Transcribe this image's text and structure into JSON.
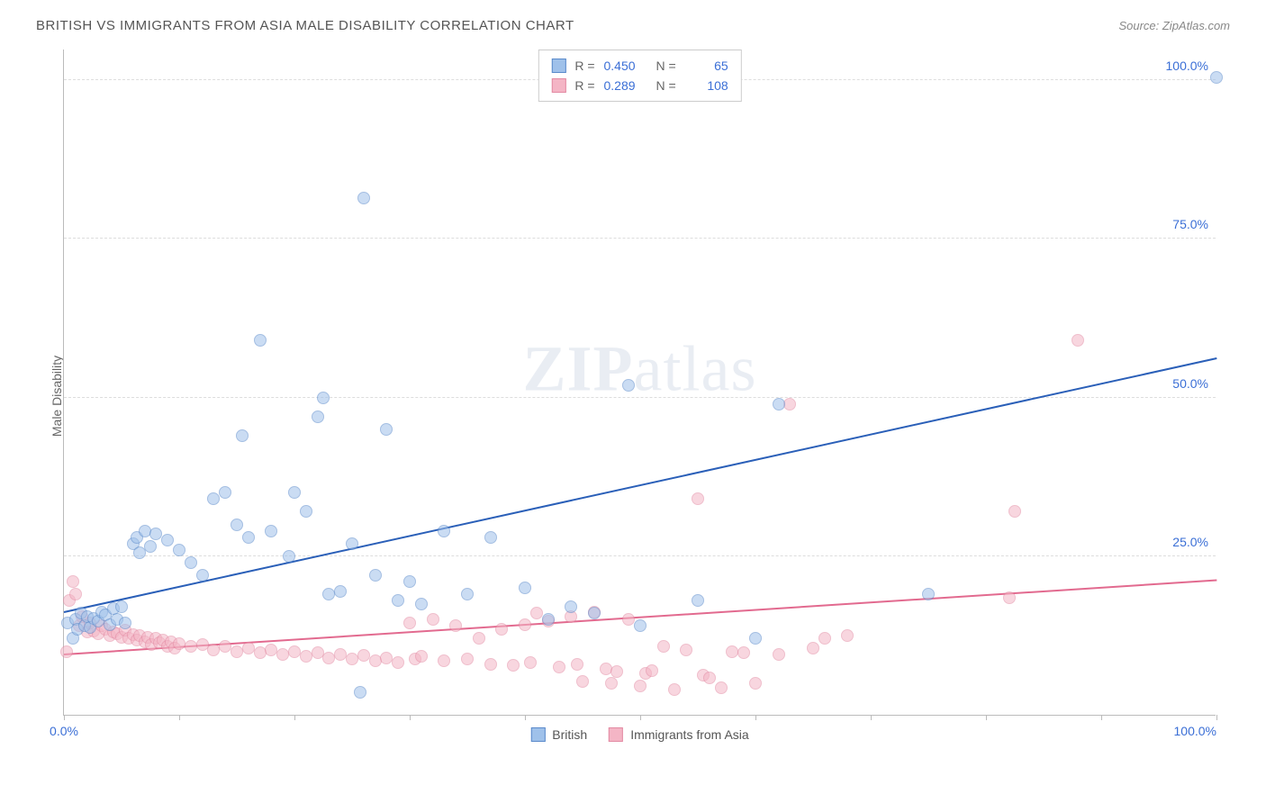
{
  "title": "BRITISH VS IMMIGRANTS FROM ASIA MALE DISABILITY CORRELATION CHART",
  "source_label": "Source: ZipAtlas.com",
  "ylabel": "Male Disability",
  "watermark": {
    "left": "ZIP",
    "right": "atlas"
  },
  "chart": {
    "type": "scatter",
    "xlim": [
      0,
      100
    ],
    "ylim": [
      0,
      105
    ],
    "x_ticks": [
      0,
      10,
      20,
      30,
      40,
      50,
      60,
      70,
      80,
      90,
      100
    ],
    "x_tick_labels": {
      "0": "0.0%",
      "100": "100.0%"
    },
    "y_gridlines": [
      25,
      50,
      75,
      100
    ],
    "y_tick_labels": {
      "25": "25.0%",
      "50": "50.0%",
      "75": "75.0%",
      "100": "100.0%"
    },
    "grid_color": "#dddddd",
    "axis_color": "#bbbbbb",
    "tick_label_color": "#3b6fd6",
    "background_color": "#ffffff",
    "point_radius": 7,
    "series": [
      {
        "name": "British",
        "fill": "#9fc1ea",
        "stroke": "#5a8acb",
        "fill_opacity": 0.55,
        "R": "0.450",
        "N": "65",
        "trend": {
          "x1": 0,
          "y1": 16.5,
          "x2": 100,
          "y2": 56.5,
          "color": "#2a5fb8",
          "width": 2
        },
        "points": [
          [
            0.3,
            14.5
          ],
          [
            0.8,
            12
          ],
          [
            1,
            15
          ],
          [
            1.2,
            13.5
          ],
          [
            1.5,
            16
          ],
          [
            1.8,
            14
          ],
          [
            2,
            15.5
          ],
          [
            2.3,
            13.8
          ],
          [
            2.6,
            15.2
          ],
          [
            3,
            14.8
          ],
          [
            3.3,
            16.2
          ],
          [
            3.6,
            15.8
          ],
          [
            4,
            14.2
          ],
          [
            4.3,
            16.8
          ],
          [
            4.6,
            15
          ],
          [
            5,
            17
          ],
          [
            5.3,
            14.5
          ],
          [
            6,
            27
          ],
          [
            6.3,
            28
          ],
          [
            6.6,
            25.5
          ],
          [
            7,
            29
          ],
          [
            7.5,
            26.5
          ],
          [
            8,
            28.5
          ],
          [
            9,
            27.5
          ],
          [
            10,
            26
          ],
          [
            11,
            24
          ],
          [
            12,
            22
          ],
          [
            13,
            34
          ],
          [
            14,
            35
          ],
          [
            15,
            30
          ],
          [
            15.5,
            44
          ],
          [
            16,
            28
          ],
          [
            17,
            59
          ],
          [
            18,
            29
          ],
          [
            19.5,
            25
          ],
          [
            20,
            35
          ],
          [
            21,
            32
          ],
          [
            22,
            47
          ],
          [
            22.5,
            50
          ],
          [
            23,
            19
          ],
          [
            24,
            19.5
          ],
          [
            25,
            27
          ],
          [
            25.7,
            3.5
          ],
          [
            26,
            81.5
          ],
          [
            27,
            22
          ],
          [
            28,
            45
          ],
          [
            29,
            18
          ],
          [
            30,
            21
          ],
          [
            31,
            17.5
          ],
          [
            33,
            29
          ],
          [
            35,
            19
          ],
          [
            37,
            28
          ],
          [
            40,
            20
          ],
          [
            42,
            15
          ],
          [
            44,
            17
          ],
          [
            46,
            16
          ],
          [
            49,
            52
          ],
          [
            50,
            14
          ],
          [
            55,
            18
          ],
          [
            60,
            12
          ],
          [
            62,
            49
          ],
          [
            75,
            19
          ],
          [
            100,
            100.5
          ]
        ]
      },
      {
        "name": "Immigrants from Asia",
        "fill": "#f4b5c5",
        "stroke": "#e38aa3",
        "fill_opacity": 0.55,
        "R": "0.289",
        "N": "108",
        "trend": {
          "x1": 0,
          "y1": 9.8,
          "x2": 100,
          "y2": 21.5,
          "color": "#e26a8f",
          "width": 2
        },
        "points": [
          [
            0.2,
            10
          ],
          [
            0.5,
            18
          ],
          [
            0.8,
            21
          ],
          [
            1,
            19
          ],
          [
            1.3,
            14
          ],
          [
            1.6,
            15.5
          ],
          [
            2,
            13
          ],
          [
            2.3,
            14.5
          ],
          [
            2.6,
            13.2
          ],
          [
            3,
            12.8
          ],
          [
            3.3,
            14
          ],
          [
            3.6,
            13.5
          ],
          [
            4,
            12.5
          ],
          [
            4.3,
            13
          ],
          [
            4.6,
            12.8
          ],
          [
            5,
            12.2
          ],
          [
            5.3,
            13.3
          ],
          [
            5.6,
            12
          ],
          [
            6,
            12.7
          ],
          [
            6.3,
            11.8
          ],
          [
            6.6,
            12.5
          ],
          [
            7,
            11.5
          ],
          [
            7.3,
            12.2
          ],
          [
            7.6,
            11
          ],
          [
            8,
            12
          ],
          [
            8.3,
            11.3
          ],
          [
            8.6,
            11.8
          ],
          [
            9,
            10.8
          ],
          [
            9.3,
            11.5
          ],
          [
            9.6,
            10.5
          ],
          [
            10,
            11.2
          ],
          [
            11,
            10.8
          ],
          [
            12,
            11
          ],
          [
            13,
            10.2
          ],
          [
            14,
            10.8
          ],
          [
            15,
            10
          ],
          [
            16,
            10.5
          ],
          [
            17,
            9.8
          ],
          [
            18,
            10.2
          ],
          [
            19,
            9.5
          ],
          [
            20,
            10
          ],
          [
            21,
            9.2
          ],
          [
            22,
            9.8
          ],
          [
            23,
            9
          ],
          [
            24,
            9.5
          ],
          [
            25,
            8.8
          ],
          [
            26,
            9.3
          ],
          [
            27,
            8.5
          ],
          [
            28,
            9
          ],
          [
            29,
            8.2
          ],
          [
            30,
            14.5
          ],
          [
            30.5,
            8.8
          ],
          [
            31,
            9.2
          ],
          [
            32,
            15
          ],
          [
            33,
            8.5
          ],
          [
            34,
            14
          ],
          [
            35,
            8.8
          ],
          [
            36,
            12
          ],
          [
            37,
            8
          ],
          [
            38,
            13.5
          ],
          [
            39,
            7.8
          ],
          [
            40,
            14.2
          ],
          [
            40.5,
            8.2
          ],
          [
            41,
            16
          ],
          [
            42,
            14.8
          ],
          [
            43,
            7.5
          ],
          [
            44,
            15.5
          ],
          [
            44.5,
            8
          ],
          [
            45,
            5.3
          ],
          [
            46,
            16.2
          ],
          [
            47,
            7.2
          ],
          [
            47.5,
            5
          ],
          [
            48,
            6.8
          ],
          [
            49,
            15
          ],
          [
            50,
            4.5
          ],
          [
            50.5,
            6.5
          ],
          [
            51,
            7
          ],
          [
            52,
            10.8
          ],
          [
            53,
            4
          ],
          [
            54,
            10.2
          ],
          [
            55,
            34
          ],
          [
            55.5,
            6.2
          ],
          [
            56,
            5.8
          ],
          [
            57,
            4.2
          ],
          [
            58,
            10
          ],
          [
            59,
            9.8
          ],
          [
            60,
            5
          ],
          [
            62,
            9.5
          ],
          [
            63,
            49
          ],
          [
            65,
            10.5
          ],
          [
            66,
            12
          ],
          [
            68,
            12.5
          ],
          [
            82,
            18.5
          ],
          [
            82.5,
            32
          ],
          [
            88,
            59
          ]
        ]
      }
    ]
  },
  "legend_top_labels": {
    "R": "R =",
    "N": "N ="
  },
  "legend_bottom": [
    {
      "label": "British",
      "fill": "#9fc1ea",
      "stroke": "#5a8acb"
    },
    {
      "label": "Immigrants from Asia",
      "fill": "#f4b5c5",
      "stroke": "#e38aa3"
    }
  ]
}
